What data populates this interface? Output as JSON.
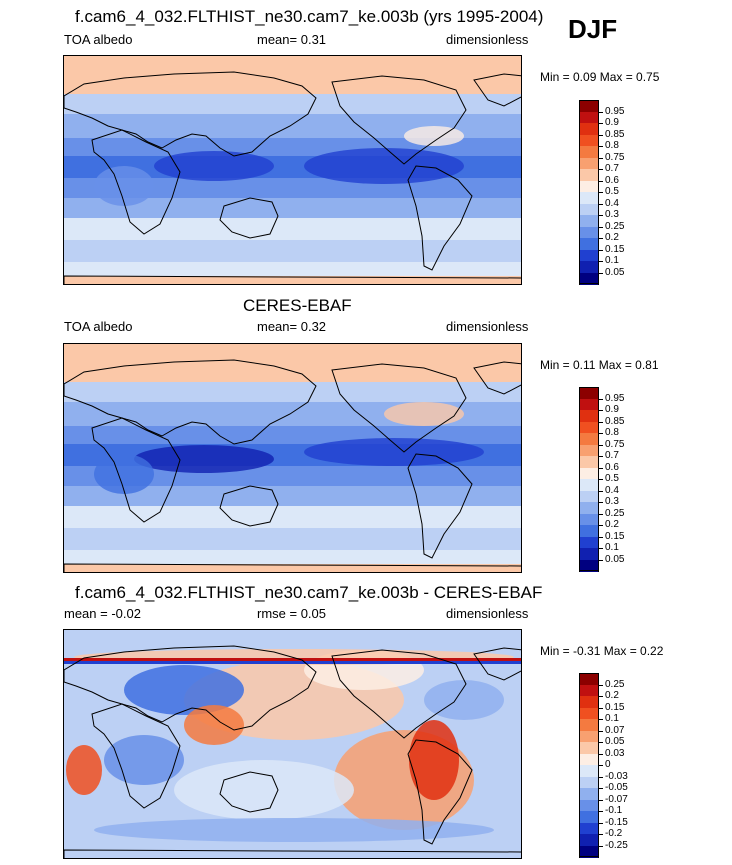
{
  "season_label": "DJF",
  "panels": [
    {
      "title": "f.cam6_4_032.FLTHIST_ne30.cam7_ke.003b (yrs 1995-2004)",
      "left_label": "TOA albedo",
      "center_label": "mean=   0.31",
      "right_label": "dimensionless",
      "minmax": "Min =   0.09 Max =   0.75",
      "colorbar_labels": [
        "0.95",
        "0.9",
        "0.85",
        "0.8",
        "0.75",
        "0.7",
        "0.6",
        "0.5",
        "0.4",
        "0.3",
        "0.25",
        "0.2",
        "0.15",
        "0.1",
        "0.05"
      ],
      "colorbar_colors": [
        "#8c0000",
        "#c01010",
        "#e03010",
        "#f05020",
        "#f47a40",
        "#f8a070",
        "#fbc8a8",
        "#fdeee4",
        "#dce8f8",
        "#bcd0f4",
        "#90b0ee",
        "#6890e8",
        "#4070e0",
        "#2040d0",
        "#1020b0",
        "#000080"
      ]
    },
    {
      "title": "CERES-EBAF",
      "left_label": "TOA albedo",
      "center_label": "mean=   0.32",
      "right_label": "dimensionless",
      "minmax": "Min =   0.11 Max =   0.81",
      "colorbar_labels": [
        "0.95",
        "0.9",
        "0.85",
        "0.8",
        "0.75",
        "0.7",
        "0.6",
        "0.5",
        "0.4",
        "0.3",
        "0.25",
        "0.2",
        "0.15",
        "0.1",
        "0.05"
      ],
      "colorbar_colors": [
        "#8c0000",
        "#c01010",
        "#e03010",
        "#f05020",
        "#f47a40",
        "#f8a070",
        "#fbc8a8",
        "#fdeee4",
        "#dce8f8",
        "#bcd0f4",
        "#90b0ee",
        "#6890e8",
        "#4070e0",
        "#2040d0",
        "#1020b0",
        "#000080"
      ]
    },
    {
      "title": "f.cam6_4_032.FLTHIST_ne30.cam7_ke.003b - CERES-EBAF",
      "left_label": "mean =  -0.02",
      "center_label": "rmse =  0.05",
      "right_label": "dimensionless",
      "minmax": "Min =  -0.31 Max =   0.22",
      "colorbar_labels": [
        "0.25",
        "0.2",
        "0.15",
        "0.1",
        "0.07",
        "0.05",
        "0.03",
        "0",
        "-0.03",
        "-0.05",
        "-0.07",
        "-0.1",
        "-0.15",
        "-0.2",
        "-0.25"
      ],
      "colorbar_colors": [
        "#8c0000",
        "#c01010",
        "#e03010",
        "#f05020",
        "#f47a40",
        "#f8a070",
        "#fbc8a8",
        "#fdeee4",
        "#dce8f8",
        "#bcd0f4",
        "#90b0ee",
        "#6890e8",
        "#4070e0",
        "#2040d0",
        "#1020b0",
        "#000080"
      ]
    }
  ],
  "chart_data": [
    {
      "type": "heatmap",
      "title": "f.cam6_4_032.FLTHIST_ne30.cam7_ke.003b (yrs 1995-2004)",
      "variable": "TOA albedo",
      "units": "dimensionless",
      "mean": 0.31,
      "min": 0.09,
      "max": 0.75,
      "levels": [
        0.05,
        0.1,
        0.15,
        0.2,
        0.25,
        0.3,
        0.4,
        0.5,
        0.6,
        0.7,
        0.75,
        0.8,
        0.85,
        0.9,
        0.95
      ]
    },
    {
      "type": "heatmap",
      "title": "CERES-EBAF",
      "variable": "TOA albedo",
      "units": "dimensionless",
      "mean": 0.32,
      "min": 0.11,
      "max": 0.81,
      "levels": [
        0.05,
        0.1,
        0.15,
        0.2,
        0.25,
        0.3,
        0.4,
        0.5,
        0.6,
        0.7,
        0.75,
        0.8,
        0.85,
        0.9,
        0.95
      ]
    },
    {
      "type": "heatmap",
      "title": "f.cam6_4_032.FLTHIST_ne30.cam7_ke.003b - CERES-EBAF",
      "units": "dimensionless",
      "mean": -0.02,
      "rmse": 0.05,
      "min": -0.31,
      "max": 0.22,
      "levels": [
        -0.25,
        -0.2,
        -0.15,
        -0.1,
        -0.07,
        -0.05,
        -0.03,
        0,
        0.03,
        0.05,
        0.07,
        0.1,
        0.15,
        0.2,
        0.25
      ]
    }
  ]
}
